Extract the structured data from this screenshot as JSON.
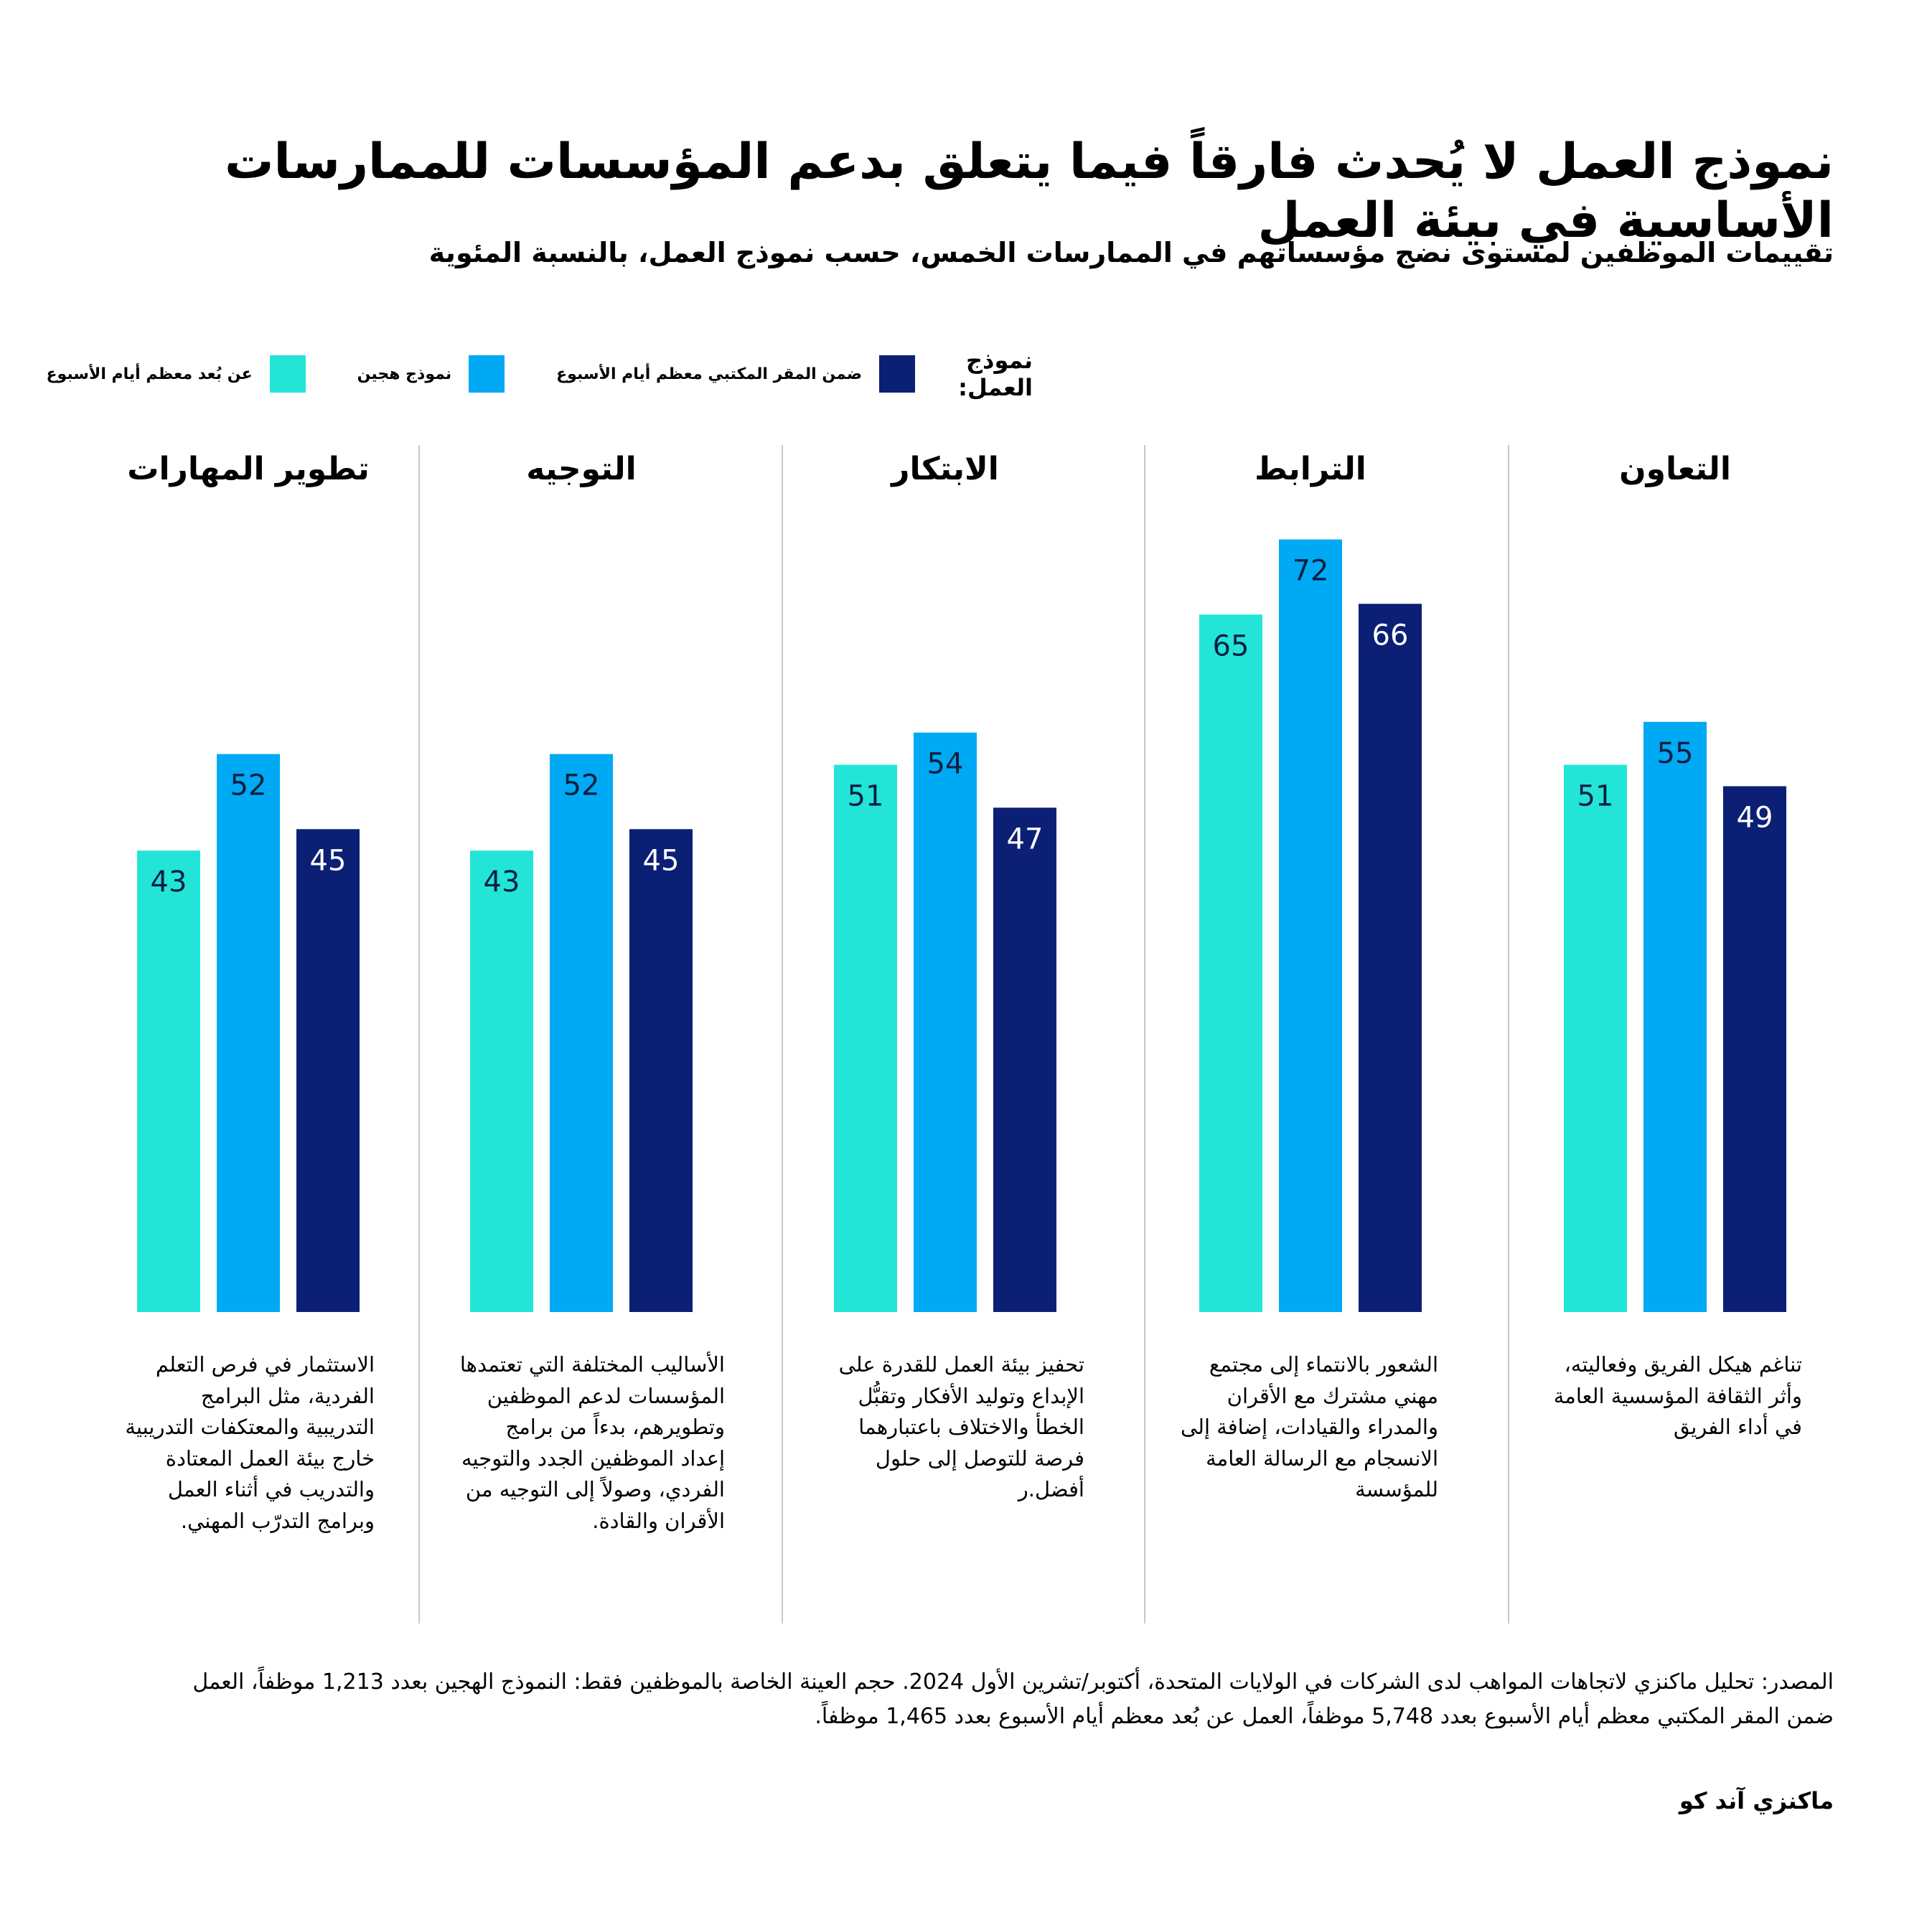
{
  "title": "نموذج العمل لا يُحدث فارقاً فيما يتعلق بدعم المؤسسات للممارسات الأساسية في بيئة العمل",
  "subtitle": "تقييمات الموظفين لمستوى نضج مؤسساتهم في الممارسات الخمس، حسب نموذج العمل، بالنسبة المئوية",
  "legend": {
    "title": "نموذج العمل:",
    "items": [
      {
        "label": "ضمن المقر المكتبي معظم أيام الأسبوع",
        "color": "#0b1f75"
      },
      {
        "label": "نموذج هجين",
        "color": "#00a9f4"
      },
      {
        "label": "عن بُعد معظم أيام الأسبوع",
        "color": "#22e5d8"
      }
    ]
  },
  "chart_data": {
    "type": "bar",
    "title": "نموذج العمل لا يُحدث فارقاً فيما يتعلق بدعم المؤسسات للممارسات الأساسية في بيئة العمل",
    "ylabel": "%",
    "ylim": [
      0,
      100
    ],
    "grid": false,
    "categories": [
      "التعاون",
      "الترابط",
      "الابتكار",
      "التوجيه",
      "تطوير المهارات"
    ],
    "series": [
      {
        "name": "ضمن المقر المكتبي معظم أيام الأسبوع",
        "color": "#0b1f75",
        "values": [
          49,
          66,
          47,
          45,
          45
        ]
      },
      {
        "name": "نموذج هجين",
        "color": "#00a9f4",
        "values": [
          55,
          72,
          54,
          52,
          52
        ]
      },
      {
        "name": "عن بُعد معظم أيام الأسبوع",
        "color": "#22e5d8",
        "values": [
          51,
          65,
          51,
          43,
          43
        ]
      }
    ],
    "descriptions": [
      [
        "تناغم هيكل الفريق وفعاليته،",
        "وأثر الثقافة المؤسسية العامة",
        "في أداء الفريق"
      ],
      [
        "الشعور بالانتماء إلى مجتمع",
        "مهني مشترك مع الأقران",
        "والمدراء والقيادات، إضافة إلى",
        "الانسجام مع الرسالة العامة",
        "للمؤسسة"
      ],
      [
        "تحفيز بيئة العمل للقدرة على",
        "الإبداع وتوليد الأفكار وتقبُّل",
        "الخطأ والاختلاف باعتبارهما",
        "فرصة للتوصل إلى حلول",
        "أفضل.ر"
      ],
      [
        "الأساليب المختلفة التي تعتمدها",
        "المؤسسات لدعم الموظفين",
        "وتطويرهم، بدءاً من برامج",
        "إعداد الموظفين الجدد والتوجيه",
        "الفردي، وصولاً إلى التوجيه من",
        "الأقران والقادة."
      ],
      [
        "الاستثمار في فرص التعلم",
        "الفردية، مثل البرامج",
        "التدريبية والمعتكفات التدريبية",
        "خارج بيئة العمل المعتادة",
        "والتدريب في أثناء العمل",
        "وبرامج التدرّب المهني."
      ]
    ]
  },
  "source": {
    "line1": "المصدر: تحليل ماكنزي لاتجاهات المواهب لدى الشركات في الولايات المتحدة، أكتوبر/تشرين الأول 2024. حجم العينة الخاصة بالموظفين فقط: النموذج الهجين بعدد 1,213 موظفاً، العمل",
    "line2": "ضمن المقر المكتبي معظم أيام الأسبوع بعدد 5,748  موظفاً، العمل عن بُعد معظم أيام الأسبوع بعدد 1,465 موظفاً."
  },
  "brand": "ماكنزي آند كو"
}
